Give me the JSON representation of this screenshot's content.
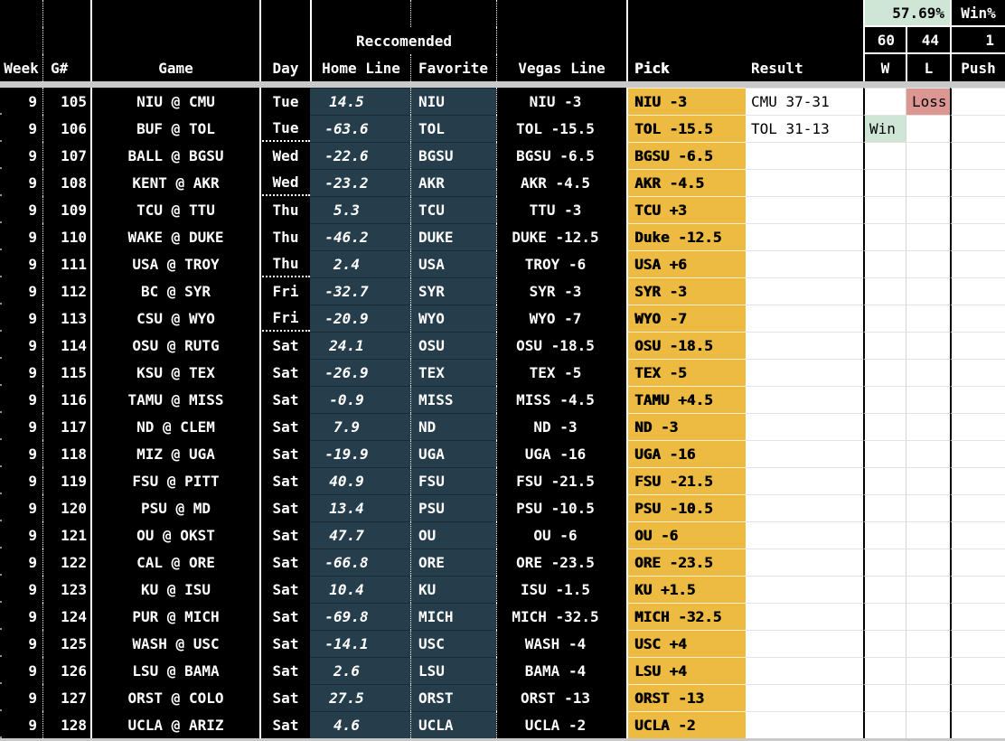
{
  "summary": {
    "win_pct": "57.69%",
    "win_pct_label": "Win%",
    "wins": "60",
    "losses": "44",
    "pushes": "1"
  },
  "header": {
    "group_label": "Reccomended",
    "columns": {
      "week": "Week",
      "game_number": "G#",
      "game": "Game",
      "day": "Day",
      "home_line": "Home Line",
      "favorite": "Favorite",
      "vegas_line": "Vegas Line",
      "pick": "Pick",
      "result": "Result",
      "w": "W",
      "l": "L",
      "push": "Push"
    }
  },
  "labels": {
    "win": "Win",
    "loss": "Loss"
  },
  "colors": {
    "pick_orange": "#edba42",
    "recommend_teal": "#263e4b",
    "win_green": "#cfe5d6",
    "loss_red": "#dc9792",
    "divider_gray": "#c9c9c9"
  },
  "rows": [
    {
      "week": "9",
      "g": "105",
      "game": "NIU @ CMU",
      "day": "Tue",
      "home_line": "14.5",
      "favorite": "NIU",
      "vegas": "NIU -3",
      "pick": "NIU -3",
      "result": "CMU 37-31",
      "outcome": "loss",
      "day_group_end": false
    },
    {
      "week": "9",
      "g": "106",
      "game": "BUF @ TOL",
      "day": "Tue",
      "home_line": "-63.6",
      "favorite": "TOL",
      "vegas": "TOL -15.5",
      "pick": "TOL -15.5",
      "result": "TOL 31-13",
      "outcome": "win",
      "day_group_end": true
    },
    {
      "week": "9",
      "g": "107",
      "game": "BALL @ BGSU",
      "day": "Wed",
      "home_line": "-22.6",
      "favorite": "BGSU",
      "vegas": "BGSU -6.5",
      "pick": "BGSU -6.5",
      "result": "",
      "outcome": "",
      "day_group_end": false
    },
    {
      "week": "9",
      "g": "108",
      "game": "KENT @ AKR",
      "day": "Wed",
      "home_line": "-23.2",
      "favorite": "AKR",
      "vegas": "AKR -4.5",
      "pick": "AKR -4.5",
      "result": "",
      "outcome": "",
      "day_group_end": true
    },
    {
      "week": "9",
      "g": "109",
      "game": "TCU @ TTU",
      "day": "Thu",
      "home_line": "5.3",
      "favorite": "TCU",
      "vegas": "TTU -3",
      "pick": "TCU +3",
      "result": "",
      "outcome": "",
      "day_group_end": false
    },
    {
      "week": "9",
      "g": "110",
      "game": "WAKE @ DUKE",
      "day": "Thu",
      "home_line": "-46.2",
      "favorite": "DUKE",
      "vegas": "DUKE -12.5",
      "pick": "Duke -12.5",
      "result": "",
      "outcome": "",
      "day_group_end": false
    },
    {
      "week": "9",
      "g": "111",
      "game": "USA @ TROY",
      "day": "Thu",
      "home_line": "2.4",
      "favorite": "USA",
      "vegas": "TROY -6",
      "pick": "USA +6",
      "result": "",
      "outcome": "",
      "day_group_end": true
    },
    {
      "week": "9",
      "g": "112",
      "game": "BC @ SYR",
      "day": "Fri",
      "home_line": "-32.7",
      "favorite": "SYR",
      "vegas": "SYR -3",
      "pick": "SYR -3",
      "result": "",
      "outcome": "",
      "day_group_end": false
    },
    {
      "week": "9",
      "g": "113",
      "game": "CSU @ WYO",
      "day": "Fri",
      "home_line": "-20.9",
      "favorite": "WYO",
      "vegas": "WYO -7",
      "pick": "WYO -7",
      "result": "",
      "outcome": "",
      "day_group_end": true
    },
    {
      "week": "9",
      "g": "114",
      "game": "OSU @ RUTG",
      "day": "Sat",
      "home_line": "24.1",
      "favorite": "OSU",
      "vegas": "OSU -18.5",
      "pick": "OSU -18.5",
      "result": "",
      "outcome": "",
      "day_group_end": false
    },
    {
      "week": "9",
      "g": "115",
      "game": "KSU @ TEX",
      "day": "Sat",
      "home_line": "-26.9",
      "favorite": "TEX",
      "vegas": "TEX -5",
      "pick": "TEX -5",
      "result": "",
      "outcome": "",
      "day_group_end": false
    },
    {
      "week": "9",
      "g": "116",
      "game": "TAMU @ MISS",
      "day": "Sat",
      "home_line": "-0.9",
      "favorite": "MISS",
      "vegas": "MISS -4.5",
      "pick": "TAMU +4.5",
      "result": "",
      "outcome": "",
      "day_group_end": false
    },
    {
      "week": "9",
      "g": "117",
      "game": "ND @ CLEM",
      "day": "Sat",
      "home_line": "7.9",
      "favorite": "ND",
      "vegas": "ND -3",
      "pick": "ND -3",
      "result": "",
      "outcome": "",
      "day_group_end": false
    },
    {
      "week": "9",
      "g": "118",
      "game": "MIZ @ UGA",
      "day": "Sat",
      "home_line": "-19.9",
      "favorite": "UGA",
      "vegas": "UGA -16",
      "pick": "UGA -16",
      "result": "",
      "outcome": "",
      "day_group_end": false
    },
    {
      "week": "9",
      "g": "119",
      "game": "FSU @ PITT",
      "day": "Sat",
      "home_line": "40.9",
      "favorite": "FSU",
      "vegas": "FSU -21.5",
      "pick": "FSU -21.5",
      "result": "",
      "outcome": "",
      "day_group_end": false
    },
    {
      "week": "9",
      "g": "120",
      "game": "PSU @ MD",
      "day": "Sat",
      "home_line": "13.4",
      "favorite": "PSU",
      "vegas": "PSU -10.5",
      "pick": "PSU -10.5",
      "result": "",
      "outcome": "",
      "day_group_end": false
    },
    {
      "week": "9",
      "g": "121",
      "game": "OU @ OKST",
      "day": "Sat",
      "home_line": "47.7",
      "favorite": "OU",
      "vegas": "OU -6",
      "pick": "OU -6",
      "result": "",
      "outcome": "",
      "day_group_end": false
    },
    {
      "week": "9",
      "g": "122",
      "game": "CAL @ ORE",
      "day": "Sat",
      "home_line": "-66.8",
      "favorite": "ORE",
      "vegas": "ORE -23.5",
      "pick": "ORE -23.5",
      "result": "",
      "outcome": "",
      "day_group_end": false
    },
    {
      "week": "9",
      "g": "123",
      "game": "KU @ ISU",
      "day": "Sat",
      "home_line": "10.4",
      "favorite": "KU",
      "vegas": "ISU -1.5",
      "pick": "KU +1.5",
      "result": "",
      "outcome": "",
      "day_group_end": false
    },
    {
      "week": "9",
      "g": "124",
      "game": "PUR @ MICH",
      "day": "Sat",
      "home_line": "-69.8",
      "favorite": "MICH",
      "vegas": "MICH -32.5",
      "pick": "MICH -32.5",
      "result": "",
      "outcome": "",
      "day_group_end": false
    },
    {
      "week": "9",
      "g": "125",
      "game": "WASH @ USC",
      "day": "Sat",
      "home_line": "-14.1",
      "favorite": "USC",
      "vegas": "WASH -4",
      "pick": "USC +4",
      "result": "",
      "outcome": "",
      "day_group_end": false
    },
    {
      "week": "9",
      "g": "126",
      "game": "LSU @ BAMA",
      "day": "Sat",
      "home_line": "2.6",
      "favorite": "LSU",
      "vegas": "BAMA -4",
      "pick": "LSU +4",
      "result": "",
      "outcome": "",
      "day_group_end": false
    },
    {
      "week": "9",
      "g": "127",
      "game": "ORST @ COLO",
      "day": "Sat",
      "home_line": "27.5",
      "favorite": "ORST",
      "vegas": "ORST -13",
      "pick": "ORST -13",
      "result": "",
      "outcome": "",
      "day_group_end": false
    },
    {
      "week": "9",
      "g": "128",
      "game": "UCLA @ ARIZ",
      "day": "Sat",
      "home_line": "4.6",
      "favorite": "UCLA",
      "vegas": "UCLA -2",
      "pick": "UCLA -2",
      "result": "",
      "outcome": "",
      "day_group_end": false
    }
  ]
}
